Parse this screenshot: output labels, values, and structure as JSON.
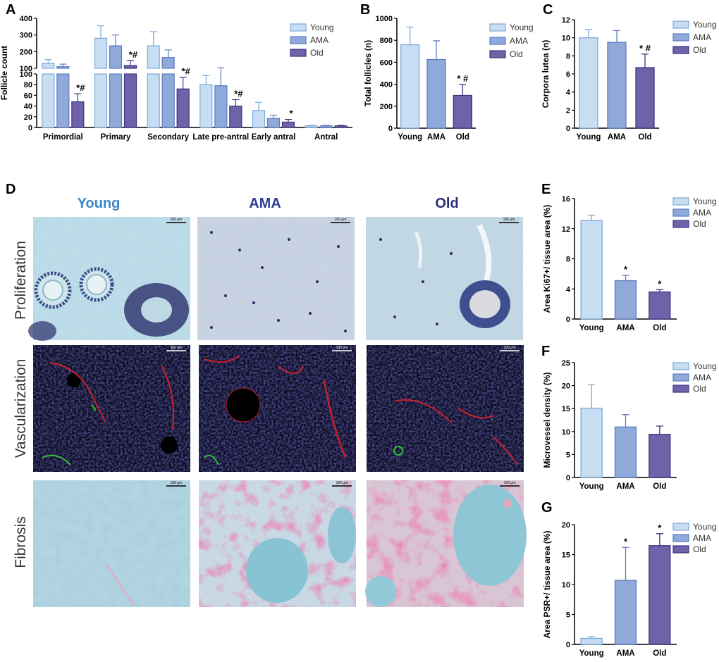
{
  "panels": {
    "A": "A",
    "B": "B",
    "C": "C",
    "D": "D",
    "E": "E",
    "F": "F",
    "G": "G"
  },
  "colors": {
    "young": "#c6ddf2",
    "ama": "#8fa9da",
    "old": "#6e62a8",
    "young_stroke": "#7fa9d8",
    "ama_stroke": "#5f7cc0",
    "old_stroke": "#3d3580"
  },
  "legend_labels": [
    "Young",
    "AMA",
    "Old"
  ],
  "micrographs": {
    "columns": [
      "Young",
      "AMA",
      "Old"
    ],
    "column_colors": [
      "#3a86c8",
      "#2f3d9a",
      "#2a2f7a"
    ],
    "rows": [
      "Proliferation",
      "Vascularization",
      "Fibrosis"
    ],
    "scale_bar": "100 μm"
  },
  "chart_data": [
    {
      "panel": "A",
      "type": "bar",
      "ylabel": "Follicle count",
      "broken_axis": true,
      "lower_ylim": [
        0,
        100
      ],
      "upper_ylim": [
        100,
        400
      ],
      "lower_ticks": [
        0,
        20,
        40,
        60,
        80,
        100
      ],
      "upper_ticks": [
        100,
        200,
        300,
        400
      ],
      "categories": [
        "Primordial",
        "Primary",
        "Secondary",
        "Late pre-antral",
        "Early antral",
        "Antral"
      ],
      "series": [
        {
          "name": "Young",
          "values": [
            130,
            280,
            235,
            80,
            32,
            3
          ],
          "errors": [
            22,
            75,
            85,
            17,
            15,
            1
          ]
        },
        {
          "name": "AMA",
          "values": [
            110,
            235,
            165,
            78,
            17,
            3
          ],
          "errors": [
            15,
            65,
            45,
            25,
            6,
            1
          ]
        },
        {
          "name": "Old",
          "values": [
            48,
            117,
            72,
            40,
            10,
            3
          ],
          "errors": [
            15,
            30,
            22,
            12,
            5,
            1
          ]
        }
      ],
      "annotations": [
        {
          "category": 0,
          "series": 2,
          "text": "*#"
        },
        {
          "category": 1,
          "series": 2,
          "text": "*#"
        },
        {
          "category": 2,
          "series": 2,
          "text": "*#"
        },
        {
          "category": 3,
          "series": 2,
          "text": "*#"
        },
        {
          "category": 4,
          "series": 2,
          "text": "*"
        }
      ]
    },
    {
      "panel": "B",
      "type": "bar",
      "ylabel": "Total follicles (n)",
      "ylim": [
        0,
        1000
      ],
      "ticks": [
        0,
        200,
        400,
        600,
        800,
        1000
      ],
      "categories": [
        "Young",
        "AMA",
        "Old"
      ],
      "values": [
        760,
        625,
        298
      ],
      "errors": [
        160,
        170,
        100
      ],
      "annotations": [
        {
          "index": 2,
          "text": "* #"
        }
      ]
    },
    {
      "panel": "C",
      "type": "bar",
      "ylabel": "Corpora lutea (n)",
      "ylim": [
        0,
        12
      ],
      "ticks": [
        0,
        2,
        4,
        6,
        8,
        10,
        12
      ],
      "categories": [
        "Young",
        "AMA",
        "Old"
      ],
      "values": [
        10,
        9.5,
        6.7
      ],
      "errors": [
        0.9,
        1.3,
        1.5
      ],
      "annotations": [
        {
          "index": 2,
          "text": "* #"
        }
      ]
    },
    {
      "panel": "E",
      "type": "bar",
      "ylabel": "Area Ki67+/ tissue area (%)",
      "ylim": [
        0,
        16
      ],
      "ticks": [
        0,
        4,
        8,
        12,
        16
      ],
      "categories": [
        "Young",
        "AMA",
        "Old"
      ],
      "values": [
        13.1,
        5.1,
        3.6
      ],
      "errors": [
        0.7,
        0.7,
        0.3
      ],
      "annotations": [
        {
          "index": 1,
          "text": "*"
        },
        {
          "index": 2,
          "text": "*"
        }
      ]
    },
    {
      "panel": "F",
      "type": "bar",
      "ylabel": "Microvessel density (%)",
      "ylim": [
        0,
        25
      ],
      "ticks": [
        0,
        5,
        10,
        15,
        20,
        25
      ],
      "categories": [
        "Young",
        "AMA",
        "Old"
      ],
      "values": [
        15.1,
        11.0,
        9.4
      ],
      "errors": [
        5.1,
        2.7,
        1.8
      ],
      "annotations": []
    },
    {
      "panel": "G",
      "type": "bar",
      "ylabel": "Area PSR+/ tissue area (%)",
      "ylim": [
        0,
        20
      ],
      "ticks": [
        0,
        5,
        10,
        15,
        20
      ],
      "categories": [
        "Young",
        "AMA",
        "Old"
      ],
      "values": [
        1.0,
        10.7,
        16.5
      ],
      "errors": [
        0.3,
        5.5,
        2.0
      ],
      "annotations": [
        {
          "index": 1,
          "text": "*"
        },
        {
          "index": 2,
          "text": "*"
        }
      ]
    }
  ]
}
